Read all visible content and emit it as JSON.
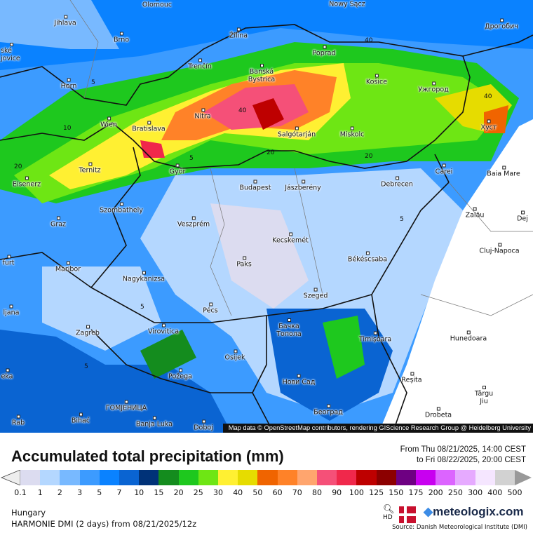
{
  "map": {
    "attribution": "Map data © OpenStreetMap contributors, rendering GIScience Research Group @ Heidelberg University",
    "cities": [
      "Olomouc",
      "Nowy Sącz",
      "Jihlava",
      "Brno",
      "Žilina",
      "Дрогобич",
      "Poprad",
      "Trenčín",
      "Banská Bystrica",
      "Košice",
      "Ужгород",
      "Horn",
      "Nitra",
      "Wien",
      "Bratislava",
      "Salgótarján",
      "Miskolc",
      "Хуст",
      "Ternitz",
      "Győr",
      "Budapest",
      "Jászberény",
      "Debrecen",
      "Carei",
      "Baia Mare",
      "Eisenerz",
      "Szombathely",
      "Graz",
      "Veszprém",
      "Zalău",
      "Kecskemét",
      "Cluj-Napoca",
      "Paks",
      "Békéscsaba",
      "Maribor",
      "Nagykanizsa",
      "Szeged",
      "Pécs",
      "Zagreb",
      "Virovitica",
      "Бачка Топола",
      "Timișoara",
      "Hunedoara",
      "Osijek",
      "Požega",
      "Нови Сад",
      "Reșita",
      "Târgu Jiu",
      "ГОМЈЕНИЦА",
      "Bihać",
      "Banja Luka",
      "Београд",
      "Doboj",
      "Drobeta",
      "Dej",
      "ské jovice",
      "furt",
      "ljana",
      "eka",
      "Rab"
    ],
    "contour_labels": [
      "5",
      "10",
      "20",
      "40"
    ]
  },
  "header": {
    "title": "Accumulated total precipitation (mm)",
    "period_from": "From Thu 08/21/2025, 14:00 CEST",
    "period_to": "to Fri 08/22/2025, 20:00 CEST"
  },
  "legend": {
    "unit": "mm",
    "labels": [
      "0.1",
      "1",
      "2",
      "3",
      "5",
      "7",
      "10",
      "15",
      "20",
      "25",
      "30",
      "40",
      "50",
      "60",
      "70",
      "80",
      "90",
      "100",
      "125",
      "150",
      "175",
      "200",
      "250",
      "300",
      "400",
      "500"
    ],
    "colors": [
      "#dcdcf0",
      "#b4d7ff",
      "#78b9ff",
      "#3c9bff",
      "#0a82ff",
      "#0a64d2",
      "#003278",
      "#148c1e",
      "#1ec81e",
      "#6ee614",
      "#fff032",
      "#e6dc00",
      "#f06400",
      "#ff8228",
      "#ffa56e",
      "#f55078",
      "#f0284b",
      "#be0000",
      "#8c0000",
      "#6e0082",
      "#c800f0",
      "#dc64ff",
      "#e6aaff",
      "#f5e6ff",
      "#d2d2d2"
    ],
    "under_color": "#eeeeee",
    "over_color": "#999999"
  },
  "footer": {
    "region": "Hungary",
    "model": "HARMONIE DMI (2 days) from  08/21/2025/12z",
    "logo": "meteologix.com",
    "hd_label": "HD",
    "source": "Source: Danish Meteorological Institute (DMI)"
  }
}
